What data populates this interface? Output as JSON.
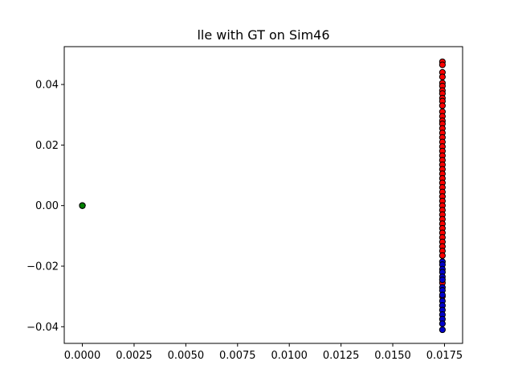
{
  "chart_data": {
    "type": "scatter",
    "title": "lle with GT on Sim46",
    "xlabel": "",
    "ylabel": "",
    "xlim": [
      -0.000875,
      0.018375
    ],
    "ylim": [
      -0.0455,
      0.0525
    ],
    "grid": false,
    "legend": "none",
    "x_ticks": [
      0.0,
      0.0025,
      0.005,
      0.0075,
      0.01,
      0.0125,
      0.015,
      0.0175
    ],
    "x_tick_labels": [
      "0.0000",
      "0.0025",
      "0.0050",
      "0.0075",
      "0.0100",
      "0.0125",
      "0.0150",
      "0.0175"
    ],
    "y_ticks": [
      -0.04,
      -0.02,
      0.0,
      0.02,
      0.04
    ],
    "y_tick_labels": [
      "−0.04",
      "−0.02",
      "0.00",
      "0.02",
      "0.04"
    ],
    "marker_edge_color": "#000000",
    "series": [
      {
        "color": "#008000",
        "points": [
          [
            0.0,
            0.0
          ],
          [
            0.0,
            0.0
          ],
          [
            0.0,
            0.0
          ]
        ]
      },
      {
        "color": "#ff0000",
        "points": [
          [
            0.0174,
            0.0475
          ],
          [
            0.0174,
            0.0465
          ],
          [
            0.0174,
            0.044
          ],
          [
            0.0174,
            0.0425
          ],
          [
            0.0174,
            0.0405
          ],
          [
            0.0174,
            0.0395
          ],
          [
            0.0174,
            0.038
          ],
          [
            0.0174,
            0.037
          ],
          [
            0.0174,
            0.0355
          ],
          [
            0.0174,
            0.0345
          ],
          [
            0.0174,
            0.033
          ],
          [
            0.0174,
            0.031
          ],
          [
            0.0174,
            0.0295
          ],
          [
            0.0174,
            0.028
          ],
          [
            0.0174,
            0.027
          ],
          [
            0.0174,
            0.0255
          ],
          [
            0.0174,
            0.024
          ],
          [
            0.0174,
            0.0225
          ],
          [
            0.0174,
            0.021
          ],
          [
            0.0174,
            0.0195
          ],
          [
            0.0174,
            0.018
          ],
          [
            0.0174,
            0.0165
          ],
          [
            0.0174,
            0.015
          ],
          [
            0.0174,
            0.0135
          ],
          [
            0.0174,
            0.012
          ],
          [
            0.0174,
            0.0105
          ],
          [
            0.0174,
            0.009
          ],
          [
            0.0174,
            0.0075
          ],
          [
            0.0174,
            0.006
          ],
          [
            0.0174,
            0.0045
          ],
          [
            0.0174,
            0.003
          ],
          [
            0.0174,
            0.0015
          ],
          [
            0.0174,
            0.0
          ],
          [
            0.0174,
            -0.0015
          ],
          [
            0.0174,
            -0.003
          ],
          [
            0.0174,
            -0.0045
          ],
          [
            0.0174,
            -0.006
          ],
          [
            0.0174,
            -0.0075
          ],
          [
            0.0174,
            -0.009
          ],
          [
            0.0174,
            -0.0105
          ],
          [
            0.0174,
            -0.012
          ],
          [
            0.0174,
            -0.0135
          ],
          [
            0.0174,
            -0.015
          ],
          [
            0.0174,
            -0.0165
          ],
          [
            0.0174,
            -0.0255
          ],
          [
            0.0174,
            -0.03
          ]
        ]
      },
      {
        "color": "#0000cc",
        "points": [
          [
            0.0174,
            -0.0185
          ],
          [
            0.0174,
            -0.0195
          ],
          [
            0.0174,
            -0.021
          ],
          [
            0.0174,
            -0.022
          ],
          [
            0.0174,
            -0.0235
          ],
          [
            0.0174,
            -0.0245
          ],
          [
            0.0174,
            -0.027
          ],
          [
            0.0174,
            -0.028
          ],
          [
            0.0174,
            -0.0295
          ],
          [
            0.0174,
            -0.0315
          ],
          [
            0.0174,
            -0.033
          ],
          [
            0.0174,
            -0.0345
          ],
          [
            0.0174,
            -0.036
          ],
          [
            0.0174,
            -0.0375
          ],
          [
            0.0174,
            -0.039
          ],
          [
            0.0174,
            -0.041
          ]
        ]
      }
    ]
  }
}
